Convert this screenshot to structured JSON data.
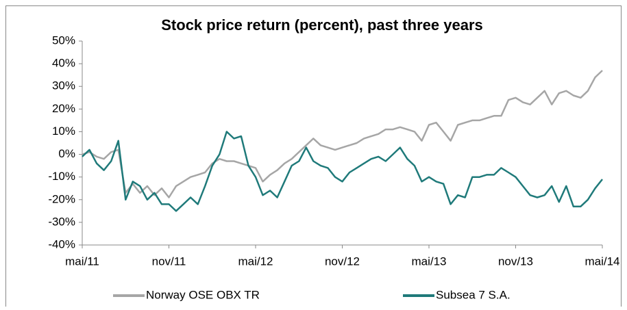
{
  "chart_data": {
    "type": "line",
    "title": "Stock price return (percent), past three years",
    "x": [
      0,
      0.5,
      1,
      1.5,
      2,
      2.5,
      3,
      3.5,
      4,
      4.5,
      5,
      5.5,
      6,
      6.5,
      7,
      7.5,
      8,
      8.5,
      9,
      9.5,
      10,
      10.5,
      11,
      11.5,
      12,
      12.5,
      13,
      13.5,
      14,
      14.5,
      15,
      15.5,
      16,
      16.5,
      17,
      17.5,
      18,
      18.5,
      19,
      19.5,
      20,
      20.5,
      21,
      21.5,
      22,
      22.5,
      23,
      23.5,
      24,
      24.5,
      25,
      25.5,
      26,
      26.5,
      27,
      27.5,
      28,
      28.5,
      29,
      29.5,
      30,
      30.5,
      31,
      31.5,
      32,
      32.5,
      33,
      33.5,
      34,
      34.5,
      35,
      35.5,
      36
    ],
    "series": [
      {
        "name": "Norway OSE OBX TR",
        "color": "#a6a6a6",
        "values": [
          0,
          1,
          -1,
          -2,
          1,
          2,
          -17,
          -13,
          -17,
          -14,
          -18,
          -15,
          -19,
          -14,
          -12,
          -10,
          -9,
          -8,
          -4,
          -2,
          -3,
          -3,
          -4,
          -5,
          -6,
          -12,
          -9,
          -7,
          -4,
          -2,
          1,
          4,
          7,
          4,
          3,
          2,
          3,
          4,
          5,
          7,
          8,
          9,
          11,
          11,
          12,
          11,
          10,
          6,
          13,
          14,
          10,
          6,
          13,
          14,
          15,
          15,
          16,
          17,
          17,
          24,
          25,
          23,
          22,
          25,
          28,
          22,
          27,
          28,
          26,
          25,
          28,
          34,
          37
        ]
      },
      {
        "name": "Subsea 7 S.A.",
        "color": "#1f7a7a",
        "values": [
          -1,
          2,
          -4,
          -7,
          -3,
          6,
          -20,
          -12,
          -14,
          -20,
          -17,
          -22,
          -22,
          -25,
          -22,
          -19,
          -22,
          -14,
          -5,
          0,
          10,
          7,
          8,
          -5,
          -10,
          -18,
          -16,
          -19,
          -12,
          -5,
          -3,
          3,
          -3,
          -5,
          -6,
          -10,
          -12,
          -8,
          -6,
          -4,
          -2,
          -1,
          -3,
          0,
          3,
          -2,
          -5,
          -12,
          -10,
          -12,
          -13,
          -22,
          -18,
          -19,
          -10,
          -10,
          -9,
          -9,
          -6,
          -8,
          -10,
          -14,
          -18,
          -19,
          -18,
          -14,
          -21,
          -14,
          -23,
          -23,
          -20,
          -15,
          -11
        ]
      }
    ],
    "xlim": [
      0,
      36
    ],
    "xticks": [
      {
        "value": 0,
        "label": "mai/11"
      },
      {
        "value": 6,
        "label": "nov/11"
      },
      {
        "value": 12,
        "label": "mai/12"
      },
      {
        "value": 18,
        "label": "nov/12"
      },
      {
        "value": 24,
        "label": "mai/13"
      },
      {
        "value": 30,
        "label": "nov/13"
      },
      {
        "value": 36,
        "label": "mai/14"
      }
    ],
    "ylim": [
      -40,
      50
    ],
    "yticks": [
      {
        "value": -40,
        "label": "-40%"
      },
      {
        "value": -30,
        "label": "-30%"
      },
      {
        "value": -20,
        "label": "-20%"
      },
      {
        "value": -10,
        "label": "-10%"
      },
      {
        "value": 0,
        "label": "0%"
      },
      {
        "value": 10,
        "label": "10%"
      },
      {
        "value": 20,
        "label": "20%"
      },
      {
        "value": 30,
        "label": "30%"
      },
      {
        "value": 40,
        "label": "40%"
      },
      {
        "value": 50,
        "label": "50%"
      }
    ],
    "grid": false
  }
}
